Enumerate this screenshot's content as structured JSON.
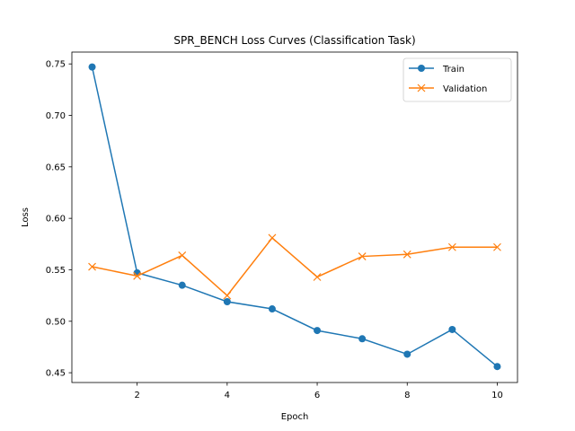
{
  "chart_data": {
    "type": "line",
    "title": "SPR_BENCH Loss Curves (Classification Task)",
    "xlabel": "Epoch",
    "ylabel": "Loss",
    "x": [
      1,
      2,
      3,
      4,
      5,
      6,
      7,
      8,
      9,
      10
    ],
    "xlim": [
      0.55,
      10.45
    ],
    "ylim": [
      0.4405,
      0.7615
    ],
    "xticks": [
      2,
      4,
      6,
      8,
      10
    ],
    "yticks": [
      0.45,
      0.5,
      0.55,
      0.6,
      0.65,
      0.7,
      0.75
    ],
    "grid": false,
    "legend_position": "top-right",
    "series": [
      {
        "name": "Train",
        "color": "#1f77b4",
        "marker": "circle",
        "values": [
          0.747,
          0.547,
          0.535,
          0.519,
          0.512,
          0.491,
          0.483,
          0.468,
          0.492,
          0.456
        ]
      },
      {
        "name": "Validation",
        "color": "#ff7f0e",
        "marker": "x",
        "values": [
          0.553,
          0.544,
          0.564,
          0.525,
          0.581,
          0.543,
          0.563,
          0.565,
          0.572,
          0.572
        ]
      }
    ]
  }
}
